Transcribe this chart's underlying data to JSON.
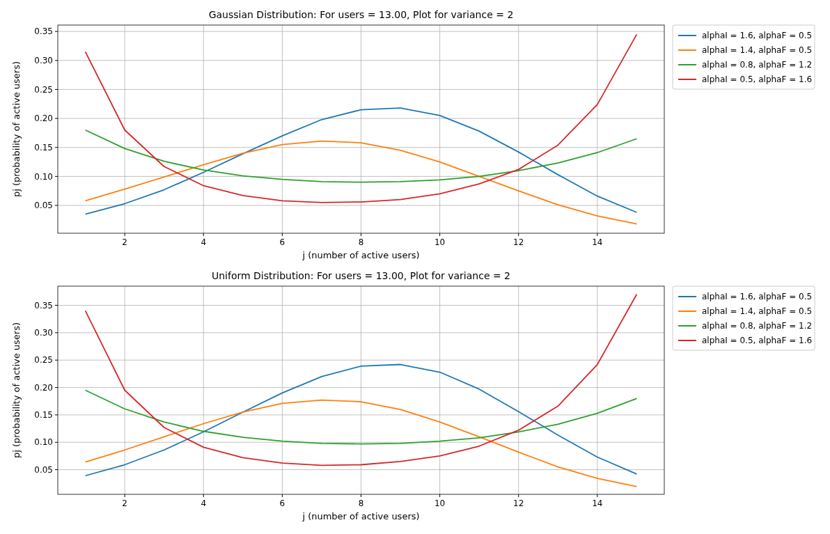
{
  "chart_data": [
    {
      "type": "line",
      "title": "Gaussian Distribution: For users = 13.00, Plot for variance = 2",
      "xlabel": "j (number of active users)",
      "ylabel": "pj (probability of active users)",
      "x": [
        1,
        2,
        3,
        4,
        5,
        6,
        7,
        8,
        9,
        10,
        11,
        12,
        13,
        14,
        15
      ],
      "xlim": [
        0.3,
        15.7
      ],
      "xticks": [
        2,
        4,
        6,
        8,
        10,
        12,
        14
      ],
      "ylim": [
        0.002,
        0.361
      ],
      "yticks": [
        0.05,
        {
          "value": 0.1,
          "label": "0.10"
        },
        0.15,
        {
          "value": 0.2,
          "label": "0.20"
        },
        0.25,
        {
          "value": 0.3,
          "label": "0.30"
        },
        0.35
      ],
      "grid": true,
      "legend": "right",
      "series": [
        {
          "name": "alphaI = 1.6, alphaF = 0.5",
          "color": "#1f77b4",
          "values": [
            0.035,
            0.053,
            0.077,
            0.107,
            0.139,
            0.17,
            0.198,
            0.215,
            0.218,
            0.205,
            0.178,
            0.142,
            0.103,
            0.066,
            0.038
          ]
        },
        {
          "name": "alphaI = 1.4, alphaF = 0.5",
          "color": "#ff7f0e",
          "values": [
            0.058,
            0.078,
            0.099,
            0.12,
            0.14,
            0.155,
            0.161,
            0.158,
            0.145,
            0.125,
            0.1,
            0.075,
            0.051,
            0.032,
            0.018
          ]
        },
        {
          "name": "alphaI = 0.8, alphaF = 1.2",
          "color": "#2ca02c",
          "values": [
            0.18,
            0.148,
            0.126,
            0.111,
            0.101,
            0.095,
            0.091,
            0.09,
            0.091,
            0.094,
            0.1,
            0.11,
            0.123,
            0.141,
            0.165
          ]
        },
        {
          "name": "alphaI = 0.5, alphaF = 1.6",
          "color": "#d62728",
          "values": [
            0.315,
            0.18,
            0.117,
            0.084,
            0.067,
            0.058,
            0.055,
            0.056,
            0.06,
            0.07,
            0.087,
            0.112,
            0.154,
            0.224,
            0.345
          ]
        }
      ]
    },
    {
      "type": "line",
      "title": "Uniform Distribution: For users = 13.00, Plot for variance = 2",
      "xlabel": "j (number of active users)",
      "ylabel": "pj (probability of active users)",
      "x": [
        1,
        2,
        3,
        4,
        5,
        6,
        7,
        8,
        9,
        10,
        11,
        12,
        13,
        14,
        15
      ],
      "xlim": [
        0.3,
        15.7
      ],
      "xticks": [
        2,
        4,
        6,
        8,
        10,
        12,
        14
      ],
      "ylim": [
        0.005,
        0.385
      ],
      "yticks": [
        0.05,
        {
          "value": 0.1,
          "label": "0.10"
        },
        0.15,
        {
          "value": 0.2,
          "label": "0.20"
        },
        0.25,
        {
          "value": 0.3,
          "label": "0.30"
        },
        0.35
      ],
      "grid": true,
      "legend": "right",
      "series": [
        {
          "name": "alphaI = 1.6, alphaF = 0.5",
          "color": "#1f77b4",
          "values": [
            0.039,
            0.059,
            0.086,
            0.119,
            0.155,
            0.19,
            0.22,
            0.239,
            0.242,
            0.228,
            0.197,
            0.156,
            0.113,
            0.073,
            0.042
          ]
        },
        {
          "name": "alphaI = 1.4, alphaF = 0.5",
          "color": "#ff7f0e",
          "values": [
            0.064,
            0.086,
            0.11,
            0.134,
            0.155,
            0.171,
            0.177,
            0.174,
            0.16,
            0.137,
            0.11,
            0.082,
            0.055,
            0.034,
            0.019
          ]
        },
        {
          "name": "alphaI = 0.8, alphaF = 1.2",
          "color": "#2ca02c",
          "values": [
            0.195,
            0.161,
            0.137,
            0.12,
            0.109,
            0.102,
            0.098,
            0.097,
            0.098,
            0.102,
            0.108,
            0.119,
            0.133,
            0.153,
            0.18
          ]
        },
        {
          "name": "alphaI = 0.5, alphaF = 1.6",
          "color": "#d62728",
          "values": [
            0.34,
            0.195,
            0.127,
            0.091,
            0.072,
            0.062,
            0.058,
            0.059,
            0.065,
            0.075,
            0.093,
            0.122,
            0.166,
            0.242,
            0.37
          ]
        }
      ]
    }
  ]
}
